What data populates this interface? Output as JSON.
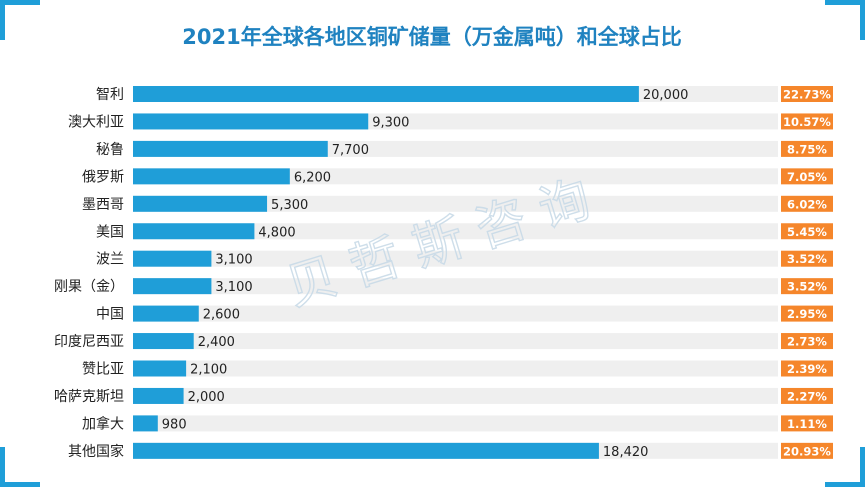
{
  "chart_data": {
    "type": "bar",
    "orientation": "horizontal",
    "title": "2021年全球各地区铜矿储量（万金属吨）和全球占比",
    "categories": [
      "智利",
      "澳大利亚",
      "秘鲁",
      "俄罗斯",
      "墨西哥",
      "美国",
      "波兰",
      "刚果（金）",
      "中国",
      "印度尼西亚",
      "赞比亚",
      "哈萨克斯坦",
      "加拿大",
      "其他国家"
    ],
    "series": [
      {
        "values": [
          20000,
          9300,
          7700,
          6200,
          5300,
          4800,
          3100,
          3100,
          2600,
          2400,
          2100,
          2000,
          980,
          18420
        ],
        "value_labels": [
          "20,000",
          "9,300",
          "7,700",
          "6,200",
          "5,300",
          "4,800",
          "3,100",
          "3,100",
          "2,600",
          "2,400",
          "2,100",
          "2,000",
          "980",
          "18,420"
        ],
        "share_labels": [
          "22.73%",
          "10.57%",
          "8.75%",
          "7.05%",
          "6.02%",
          "5.45%",
          "3.52%",
          "3.52%",
          "2.95%",
          "2.73%",
          "2.39%",
          "2.27%",
          "1.11%",
          "20.93%"
        ]
      }
    ],
    "xlim": [
      0,
      25500
    ],
    "grid": false,
    "legend": "none",
    "watermark": "贝哲斯咨询",
    "colors": {
      "title": "#1f82c0",
      "bar": "#1f9ed8",
      "track": "#efefef",
      "share_bg": "#f5862b",
      "share_text": "#ffffff",
      "frame_corner": "#1f9ed8",
      "label": "#222222",
      "watermark": "#c9dbe8"
    }
  }
}
